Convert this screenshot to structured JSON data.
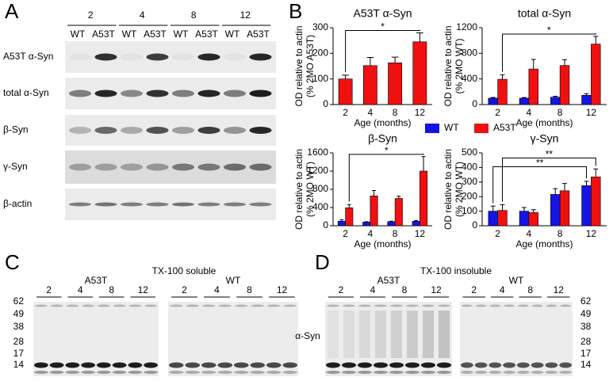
{
  "panel_a": {
    "label": "A",
    "ages": [
      "2",
      "4",
      "8",
      "12"
    ],
    "lanes": [
      "WT",
      "A53T",
      "WT",
      "A53T",
      "WT",
      "A53T",
      "WT",
      "A53T"
    ],
    "rows": [
      "A53T α-Syn",
      "total α-Syn",
      "β-Syn",
      "γ-Syn",
      "β-actin"
    ]
  },
  "panel_b": {
    "label": "B"
  },
  "chart_data": [
    {
      "type": "bar",
      "title": "A53T α-Syn",
      "ylabel": [
        "OD relative to actin",
        "(% 2MO A53T)"
      ],
      "xlabel": "Age (months)",
      "categories": [
        "2",
        "4",
        "8",
        "12"
      ],
      "series": [
        {
          "name": "A53T",
          "color": "#f01010",
          "values": [
            100,
            152,
            163,
            245
          ],
          "errors": [
            15,
            32,
            22,
            35
          ]
        }
      ],
      "ylim": [
        0,
        300
      ],
      "yticks": [
        0,
        100,
        200,
        300
      ],
      "brackets": [
        {
          "label": "*",
          "between": [
            "2",
            "12"
          ],
          "series": "A53T"
        }
      ]
    },
    {
      "type": "bar",
      "title": "total α-Syn",
      "ylabel": [
        "OD relative to actin",
        "(% 2MO WT)"
      ],
      "xlabel": "Age (months)",
      "categories": [
        "2",
        "4",
        "8",
        "12"
      ],
      "series": [
        {
          "name": "WT",
          "color": "#1414e6",
          "values": [
            100,
            100,
            115,
            145
          ],
          "errors": [
            12,
            10,
            15,
            25
          ]
        },
        {
          "name": "A53T",
          "color": "#f01010",
          "values": [
            395,
            555,
            610,
            945
          ],
          "errors": [
            70,
            150,
            90,
            120
          ]
        }
      ],
      "ylim": [
        0,
        1200
      ],
      "yticks": [
        0,
        400,
        800,
        1200
      ],
      "legend": "bottom",
      "brackets": [
        {
          "label": "*",
          "between": [
            "2",
            "12"
          ],
          "series": "A53T"
        }
      ]
    },
    {
      "type": "bar",
      "title": "β-Syn",
      "ylabel": [
        "OD relative to actin",
        "(% 2MO WT)"
      ],
      "xlabel": "Age (months)",
      "categories": [
        "2",
        "4",
        "8",
        "12"
      ],
      "series": [
        {
          "name": "WT",
          "color": "#1414e6",
          "values": [
            100,
            80,
            90,
            100
          ],
          "errors": [
            30,
            10,
            10,
            15
          ]
        },
        {
          "name": "A53T",
          "color": "#f01010",
          "values": [
            395,
            655,
            600,
            1200
          ],
          "errors": [
            70,
            120,
            50,
            320
          ]
        }
      ],
      "ylim": [
        0,
        1600
      ],
      "yticks": [
        0,
        400,
        800,
        1200,
        1600
      ],
      "brackets": [
        {
          "label": "*",
          "between": [
            "2",
            "12"
          ],
          "series": "A53T"
        }
      ]
    },
    {
      "type": "bar",
      "title": "γ-Syn",
      "ylabel": [
        "OD relative to actin",
        "(% 2MO WT)"
      ],
      "xlabel": "Age (months)",
      "categories": [
        "2",
        "4",
        "8",
        "12"
      ],
      "series": [
        {
          "name": "WT",
          "color": "#1414e6",
          "values": [
            100,
            100,
            215,
            275
          ],
          "errors": [
            35,
            25,
            40,
            30
          ]
        },
        {
          "name": "A53T",
          "color": "#f01010",
          "values": [
            105,
            90,
            240,
            335
          ],
          "errors": [
            40,
            20,
            50,
            55
          ]
        }
      ],
      "ylim": [
        0,
        500
      ],
      "yticks": [
        0,
        100,
        200,
        300,
        400,
        500
      ],
      "brackets": [
        {
          "label": "**",
          "between": [
            "2",
            "12"
          ],
          "series": "WT"
        },
        {
          "label": "**",
          "between": [
            "2",
            "12"
          ],
          "series": "A53T"
        }
      ]
    }
  ],
  "panel_c": {
    "label": "C",
    "title": "TX-100 soluble",
    "groups": [
      {
        "name": "A53T",
        "ages": [
          "2",
          "4",
          "8",
          "12"
        ]
      },
      {
        "name": "WT",
        "ages": [
          "2",
          "4",
          "8",
          "12"
        ]
      }
    ],
    "markers": [
      "62",
      "49",
      "38",
      "28",
      "17",
      "14"
    ]
  },
  "panel_d": {
    "label": "D",
    "title": "TX-100 insoluble",
    "protein": "α-Syn",
    "groups": [
      {
        "name": "A53T",
        "ages": [
          "2",
          "4",
          "8",
          "12"
        ]
      },
      {
        "name": "WT",
        "ages": [
          "2",
          "4",
          "8",
          "12"
        ]
      }
    ],
    "markers": [
      "62",
      "49",
      "38",
      "28",
      "17",
      "14"
    ]
  }
}
